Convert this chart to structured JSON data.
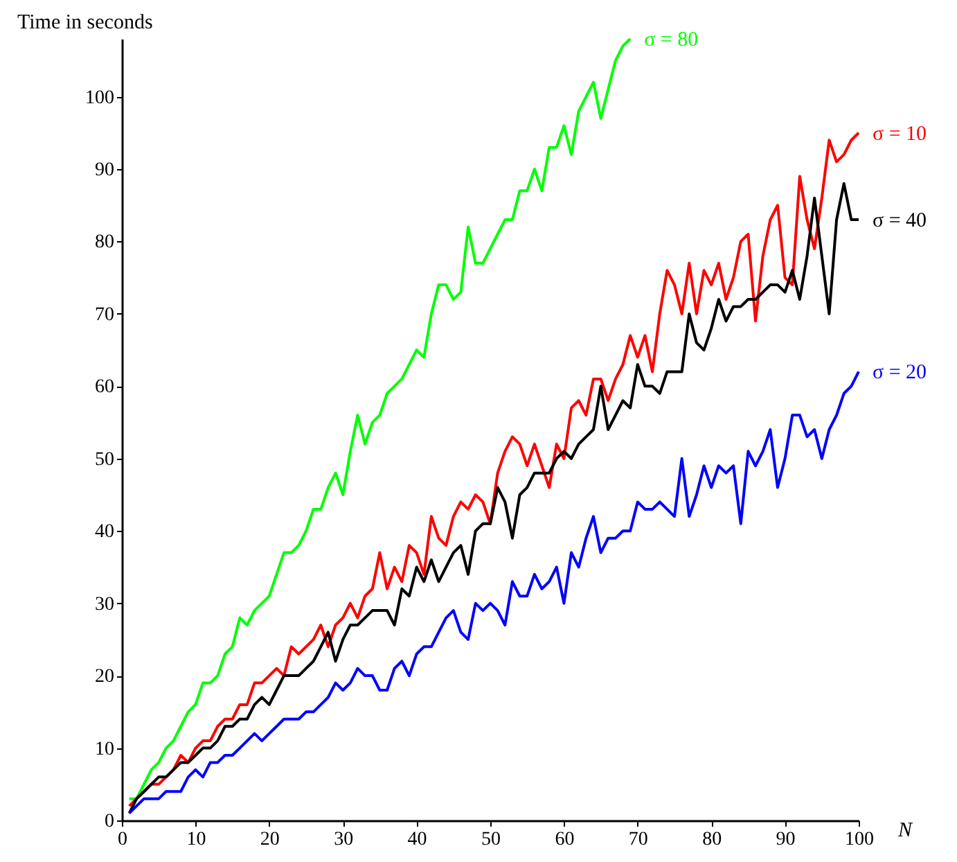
{
  "chart_data": {
    "type": "line",
    "xlabel": "N",
    "ylabel": "Time in seconds",
    "xlim": [
      0,
      100
    ],
    "ylim": [
      0,
      108
    ],
    "xticks": [
      0,
      10,
      20,
      30,
      40,
      50,
      60,
      70,
      80,
      90,
      100
    ],
    "yticks": [
      0,
      10,
      20,
      30,
      40,
      50,
      60,
      70,
      80,
      90,
      100
    ],
    "grid": false,
    "legend": false,
    "series": [
      {
        "name": "σ = 80",
        "color": "#00ff00",
        "x": [
          1,
          2,
          3,
          4,
          5,
          6,
          7,
          8,
          9,
          10,
          11,
          12,
          13,
          14,
          15,
          16,
          17,
          18,
          19,
          20,
          21,
          22,
          23,
          24,
          25,
          26,
          27,
          28,
          29,
          30,
          31,
          32,
          33,
          34,
          35,
          36,
          37,
          38,
          39,
          40,
          41,
          42,
          43,
          44,
          45,
          46,
          47,
          48,
          49,
          50,
          51,
          52,
          53,
          54,
          55,
          56,
          57,
          58,
          59,
          60,
          61,
          62,
          63,
          64,
          65,
          66,
          67,
          68,
          69
        ],
        "values": [
          3,
          3,
          5,
          7,
          8,
          10,
          11,
          13,
          15,
          16,
          19,
          19,
          20,
          23,
          24,
          28,
          27,
          29,
          30,
          31,
          34,
          37,
          37,
          38,
          40,
          43,
          43,
          46,
          48,
          45,
          51,
          56,
          52,
          55,
          56,
          59,
          60,
          61,
          63,
          65,
          64,
          70,
          74,
          74,
          72,
          73,
          82,
          77,
          77,
          79,
          81,
          83,
          83,
          87,
          87,
          90,
          87,
          93,
          93,
          96,
          92,
          98,
          100,
          102,
          97,
          101,
          105,
          107,
          108
        ]
      },
      {
        "name": "σ = 10",
        "color": "#ff0000",
        "x": [
          1,
          2,
          3,
          4,
          5,
          6,
          7,
          8,
          9,
          10,
          11,
          12,
          13,
          14,
          15,
          16,
          17,
          18,
          19,
          20,
          21,
          22,
          23,
          24,
          25,
          26,
          27,
          28,
          29,
          30,
          31,
          32,
          33,
          34,
          35,
          36,
          37,
          38,
          39,
          40,
          41,
          42,
          43,
          44,
          45,
          46,
          47,
          48,
          49,
          50,
          51,
          52,
          53,
          54,
          55,
          56,
          57,
          58,
          59,
          60,
          61,
          62,
          63,
          64,
          65,
          66,
          67,
          68,
          69,
          70,
          71,
          72,
          73,
          74,
          75,
          76,
          77,
          78,
          79,
          80,
          81,
          82,
          83,
          84,
          85,
          86,
          87,
          88,
          89,
          90,
          91,
          92,
          93,
          94,
          95,
          96,
          97,
          98,
          99,
          100
        ],
        "values": [
          2,
          3,
          4,
          5,
          5,
          6,
          7,
          9,
          8,
          10,
          11,
          11,
          13,
          14,
          14,
          16,
          16,
          19,
          19,
          20,
          21,
          20,
          24,
          23,
          24,
          25,
          27,
          24,
          27,
          28,
          30,
          28,
          31,
          32,
          37,
          32,
          35,
          33,
          38,
          37,
          34,
          42,
          39,
          38,
          42,
          44,
          43,
          45,
          44,
          41,
          48,
          51,
          53,
          52,
          49,
          52,
          49,
          46,
          52,
          50,
          57,
          58,
          56,
          61,
          61,
          58,
          61,
          63,
          67,
          64,
          67,
          62,
          70,
          76,
          74,
          70,
          77,
          70,
          76,
          74,
          77,
          72,
          75,
          80,
          81,
          69,
          78,
          83,
          85,
          75,
          74,
          89,
          83,
          79,
          86,
          94,
          91,
          92,
          94,
          95
        ]
      },
      {
        "name": "σ = 40",
        "color": "#000000",
        "x": [
          1,
          2,
          3,
          4,
          5,
          6,
          7,
          8,
          9,
          10,
          11,
          12,
          13,
          14,
          15,
          16,
          17,
          18,
          19,
          20,
          21,
          22,
          23,
          24,
          25,
          26,
          27,
          28,
          29,
          30,
          31,
          32,
          33,
          34,
          35,
          36,
          37,
          38,
          39,
          40,
          41,
          42,
          43,
          44,
          45,
          46,
          47,
          48,
          49,
          50,
          51,
          52,
          53,
          54,
          55,
          56,
          57,
          58,
          59,
          60,
          61,
          62,
          63,
          64,
          65,
          66,
          67,
          68,
          69,
          70,
          71,
          72,
          73,
          74,
          75,
          76,
          77,
          78,
          79,
          80,
          81,
          82,
          83,
          84,
          85,
          86,
          87,
          88,
          89,
          90,
          91,
          92,
          93,
          94,
          95,
          96,
          97,
          98,
          99,
          100
        ],
        "values": [
          1,
          3,
          4,
          5,
          6,
          6,
          7,
          8,
          8,
          9,
          10,
          10,
          11,
          13,
          13,
          14,
          14,
          16,
          17,
          16,
          18,
          20,
          20,
          20,
          21,
          22,
          24,
          26,
          22,
          25,
          27,
          27,
          28,
          29,
          29,
          29,
          27,
          32,
          31,
          35,
          33,
          36,
          33,
          35,
          37,
          38,
          34,
          40,
          41,
          41,
          46,
          44,
          39,
          45,
          46,
          48,
          48,
          48,
          50,
          51,
          50,
          52,
          53,
          54,
          60,
          54,
          56,
          58,
          57,
          63,
          60,
          60,
          59,
          62,
          62,
          62,
          70,
          66,
          65,
          68,
          72,
          69,
          71,
          71,
          72,
          72,
          73,
          74,
          74,
          73,
          76,
          72,
          78,
          86,
          78,
          70,
          83,
          88,
          83,
          83
        ]
      },
      {
        "name": "σ = 20",
        "color": "#0000ff",
        "x": [
          1,
          2,
          3,
          4,
          5,
          6,
          7,
          8,
          9,
          10,
          11,
          12,
          13,
          14,
          15,
          16,
          17,
          18,
          19,
          20,
          21,
          22,
          23,
          24,
          25,
          26,
          27,
          28,
          29,
          30,
          31,
          32,
          33,
          34,
          35,
          36,
          37,
          38,
          39,
          40,
          41,
          42,
          43,
          44,
          45,
          46,
          47,
          48,
          49,
          50,
          51,
          52,
          53,
          54,
          55,
          56,
          57,
          58,
          59,
          60,
          61,
          62,
          63,
          64,
          65,
          66,
          67,
          68,
          69,
          70,
          71,
          72,
          73,
          74,
          75,
          76,
          77,
          78,
          79,
          80,
          81,
          82,
          83,
          84,
          85,
          86,
          87,
          88,
          89,
          90,
          91,
          92,
          93,
          94,
          95,
          96,
          97,
          98,
          99,
          100
        ],
        "values": [
          1,
          2,
          3,
          3,
          3,
          4,
          4,
          4,
          6,
          7,
          6,
          8,
          8,
          9,
          9,
          10,
          11,
          12,
          11,
          12,
          13,
          14,
          14,
          14,
          15,
          15,
          16,
          17,
          19,
          18,
          19,
          21,
          20,
          20,
          18,
          18,
          21,
          22,
          20,
          23,
          24,
          24,
          26,
          28,
          29,
          26,
          25,
          30,
          29,
          30,
          29,
          27,
          33,
          31,
          31,
          34,
          32,
          33,
          35,
          30,
          37,
          35,
          39,
          42,
          37,
          39,
          39,
          40,
          40,
          44,
          43,
          43,
          44,
          43,
          42,
          50,
          42,
          45,
          49,
          46,
          49,
          48,
          49,
          41,
          51,
          49,
          51,
          54,
          46,
          50,
          56,
          56,
          53,
          54,
          50,
          54,
          56,
          59,
          60,
          62
        ]
      }
    ]
  }
}
